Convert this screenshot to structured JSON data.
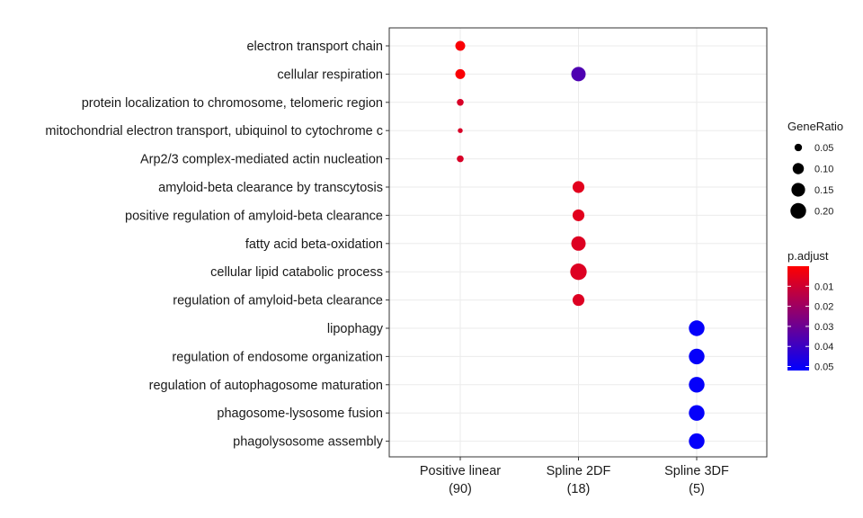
{
  "chart_data": {
    "type": "scatter",
    "subtype": "dot-plot",
    "categories_x": [
      {
        "label": "Positive linear",
        "sublabel": "(90)"
      },
      {
        "label": "Spline 2DF",
        "sublabel": "(18)"
      },
      {
        "label": "Spline 3DF",
        "sublabel": "(5)"
      }
    ],
    "categories_y": [
      "electron transport chain",
      "cellular respiration",
      "protein localization to chromosome, telomeric region",
      "mitochondrial electron transport, ubiquinol to cytochrome c",
      "Arp2/3 complex-mediated actin nucleation",
      "amyloid-beta clearance by transcytosis",
      "positive regulation of amyloid-beta clearance",
      "fatty acid beta-oxidation",
      "cellular lipid catabolic process",
      "regulation of amyloid-beta clearance",
      "lipophagy",
      "regulation of endosome organization",
      "regulation of autophagosome maturation",
      "phagosome-lysosome fusion",
      "phagolysosome assembly"
    ],
    "points": [
      {
        "x": "Positive linear",
        "y": "electron transport chain",
        "gene_ratio": 0.078,
        "p_adjust": 0.001
      },
      {
        "x": "Positive linear",
        "y": "cellular respiration",
        "gene_ratio": 0.078,
        "p_adjust": 0.001
      },
      {
        "x": "Spline 2DF",
        "y": "cellular respiration",
        "gene_ratio": 0.167,
        "p_adjust": 0.036
      },
      {
        "x": "Positive linear",
        "y": "protein localization to chromosome, telomeric region",
        "gene_ratio": 0.044,
        "p_adjust": 0.008
      },
      {
        "x": "Positive linear",
        "y": "mitochondrial electron transport, ubiquinol to cytochrome c",
        "gene_ratio": 0.033,
        "p_adjust": 0.008
      },
      {
        "x": "Positive linear",
        "y": "Arp2/3 complex-mediated actin nucleation",
        "gene_ratio": 0.044,
        "p_adjust": 0.008
      },
      {
        "x": "Spline 2DF",
        "y": "amyloid-beta clearance by transcytosis",
        "gene_ratio": 0.111,
        "p_adjust": 0.006
      },
      {
        "x": "Spline 2DF",
        "y": "positive regulation of amyloid-beta clearance",
        "gene_ratio": 0.111,
        "p_adjust": 0.006
      },
      {
        "x": "Spline 2DF",
        "y": "fatty acid beta-oxidation",
        "gene_ratio": 0.167,
        "p_adjust": 0.007
      },
      {
        "x": "Spline 2DF",
        "y": "cellular lipid catabolic process",
        "gene_ratio": 0.222,
        "p_adjust": 0.007
      },
      {
        "x": "Spline 2DF",
        "y": "regulation of amyloid-beta clearance",
        "gene_ratio": 0.111,
        "p_adjust": 0.007
      },
      {
        "x": "Spline 3DF",
        "y": "lipophagy",
        "gene_ratio": 0.2,
        "p_adjust": 0.051
      },
      {
        "x": "Spline 3DF",
        "y": "regulation of endosome organization",
        "gene_ratio": 0.2,
        "p_adjust": 0.051
      },
      {
        "x": "Spline 3DF",
        "y": "regulation of autophagosome maturation",
        "gene_ratio": 0.2,
        "p_adjust": 0.051
      },
      {
        "x": "Spline 3DF",
        "y": "phagosome-lysosome fusion",
        "gene_ratio": 0.2,
        "p_adjust": 0.051
      },
      {
        "x": "Spline 3DF",
        "y": "phagolysosome assembly",
        "gene_ratio": 0.2,
        "p_adjust": 0.051
      }
    ],
    "legend_size": {
      "title": "GeneRatio",
      "values": [
        0.05,
        0.1,
        0.15,
        0.2
      ],
      "labels": [
        "0.05",
        "0.10",
        "0.15",
        "0.20"
      ]
    },
    "legend_color": {
      "title": "p.adjust",
      "low_color": "#ff0000",
      "high_color": "#0000ff",
      "range": [
        0.0,
        0.052
      ],
      "ticks": [
        0.01,
        0.02,
        0.03,
        0.04,
        0.05
      ],
      "tick_labels": [
        "0.01",
        "0.02",
        "0.03",
        "0.04",
        "0.05"
      ]
    },
    "legend_position": "right",
    "grid": true,
    "xlabel": "",
    "ylabel": "",
    "title": ""
  }
}
